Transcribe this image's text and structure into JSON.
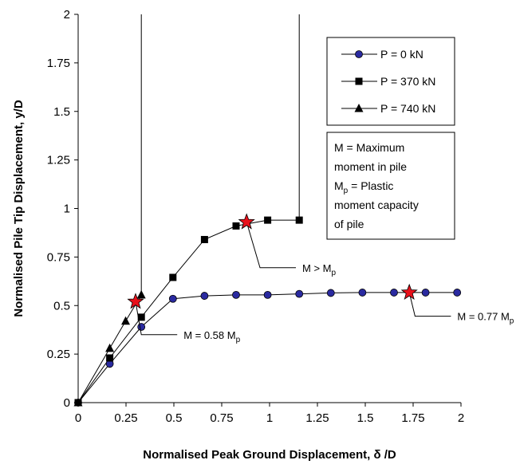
{
  "chart_data": {
    "type": "scatter",
    "xlabel": "Normalised Peak Ground Displacement, δ /D",
    "ylabel": "Normalised Pile Tip Displacement, y/D",
    "xlim": [
      0,
      2
    ],
    "ylim": [
      0,
      2
    ],
    "x_ticks": [
      "0",
      "0.25",
      "0.5",
      "0.75",
      "1",
      "1.25",
      "1.5",
      "1.75",
      "2"
    ],
    "y_ticks": [
      "0",
      "0.25",
      "0.5",
      "0.75",
      "1",
      "1.25",
      "1.5",
      "1.75",
      "2"
    ],
    "grid": false,
    "legend_position": "top-right",
    "series": [
      {
        "name": "P = 0 kN",
        "marker": "circle",
        "color": "#2a2aa0",
        "x": [
          0,
          0.165,
          0.33,
          0.495,
          0.66,
          0.825,
          0.99,
          1.155,
          1.32,
          1.485,
          1.65,
          1.815,
          1.98
        ],
        "y": [
          0,
          0.2,
          0.39,
          0.535,
          0.55,
          0.555,
          0.555,
          0.56,
          0.565,
          0.567,
          0.567,
          0.567,
          0.567
        ]
      },
      {
        "name": "P = 370 kN",
        "marker": "square",
        "color": "#000000",
        "x": [
          0,
          0.165,
          0.33,
          0.495,
          0.66,
          0.825,
          0.99,
          1.155
        ],
        "y": [
          0,
          0.23,
          0.44,
          0.645,
          0.84,
          0.91,
          0.94,
          0.94
        ]
      },
      {
        "name": "P = 740 kN",
        "marker": "triangle",
        "color": "#000000",
        "x": [
          0,
          0.165,
          0.248,
          0.33
        ],
        "y": [
          0,
          0.28,
          0.42,
          0.555
        ]
      }
    ],
    "stars": [
      {
        "x": 0.3,
        "y": 0.52
      },
      {
        "x": 0.88,
        "y": 0.93
      },
      {
        "x": 1.73,
        "y": 0.567
      }
    ],
    "vertical_lines": [
      {
        "x": 0.33,
        "y_from": 0.555,
        "y_to": 2
      },
      {
        "x": 1.155,
        "y_from": 0.94,
        "y_to": 2
      }
    ],
    "annotations": [
      {
        "main": "M = 0.58 M",
        "sub": "p",
        "from": {
          "x": 0.3,
          "y": 0.52
        },
        "bend": {
          "x": 0.33,
          "y": 0.35
        }
      },
      {
        "main": "M > M",
        "sub": "p",
        "from": {
          "x": 0.88,
          "y": 0.93
        },
        "bend": {
          "x": 0.95,
          "y": 0.695
        }
      },
      {
        "main": "M = 0.77 M",
        "sub": "p",
        "from": {
          "x": 1.73,
          "y": 0.567
        },
        "bend": {
          "x": 1.76,
          "y": 0.445
        }
      }
    ],
    "note_box": {
      "lines": [
        [
          {
            "t": "M = Maximum"
          }
        ],
        [
          {
            "t": "moment in pile"
          }
        ],
        [
          {
            "t": "M"
          },
          {
            "t": "p",
            "sub": true
          },
          {
            "t": " = Plastic"
          }
        ],
        [
          {
            "t": "moment capacity"
          }
        ],
        [
          {
            "t": "of pile"
          }
        ]
      ]
    },
    "star_color": "#e8101a"
  }
}
